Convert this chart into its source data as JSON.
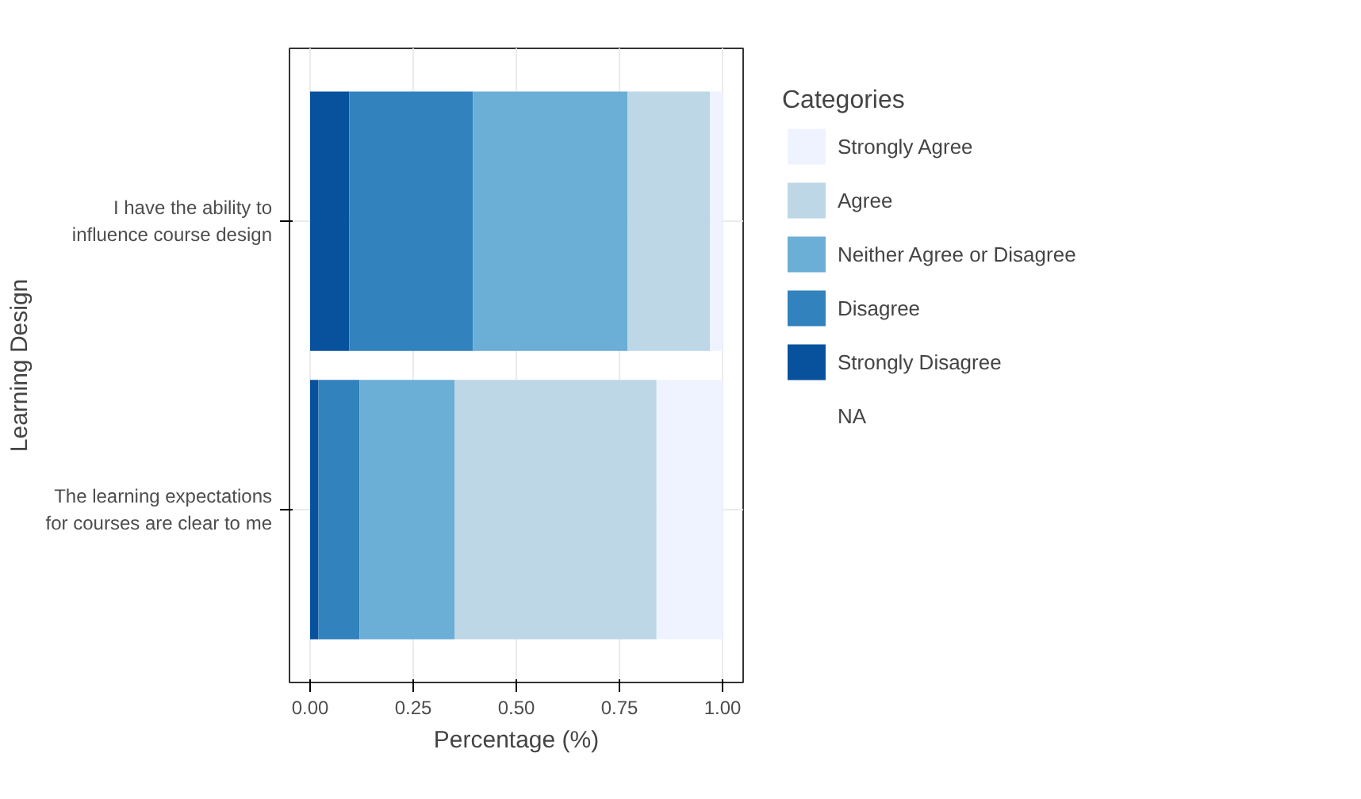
{
  "chart_data": {
    "type": "bar",
    "orientation": "horizontal",
    "stacked": true,
    "xlabel": "Percentage (%)",
    "ylabel": "Learning Design",
    "legend_title": "Categories",
    "legend": "right",
    "grid": true,
    "categories": [
      "I have the ability to\ninfluence course design",
      "The learning expectations\nfor courses are clear to me"
    ],
    "xlim": [
      -0.05,
      1.05
    ],
    "xticks": [
      {
        "value": 0,
        "label": "0.00"
      },
      {
        "value": 0.25,
        "label": "0.25"
      },
      {
        "value": 0.5,
        "label": "0.50"
      },
      {
        "value": 0.75,
        "label": "0.75"
      },
      {
        "value": 1,
        "label": "1.00"
      }
    ],
    "series": [
      {
        "name": "Strongly Disagree",
        "color": "#08519c",
        "values": [
          0.095,
          0.02
        ]
      },
      {
        "name": "Disagree",
        "color": "#3182bd",
        "values": [
          0.3,
          0.1
        ]
      },
      {
        "name": "Neither Agree or Disagree",
        "color": "#6baed6",
        "values": [
          0.375,
          0.23
        ]
      },
      {
        "name": "Agree",
        "color": "#bdd7e7",
        "values": [
          0.2,
          0.49
        ]
      },
      {
        "name": "Strongly Agree",
        "color": "#eff3ff",
        "values": [
          0.03,
          0.16
        ]
      },
      {
        "name": "NA",
        "values": [
          null,
          null
        ]
      }
    ]
  }
}
